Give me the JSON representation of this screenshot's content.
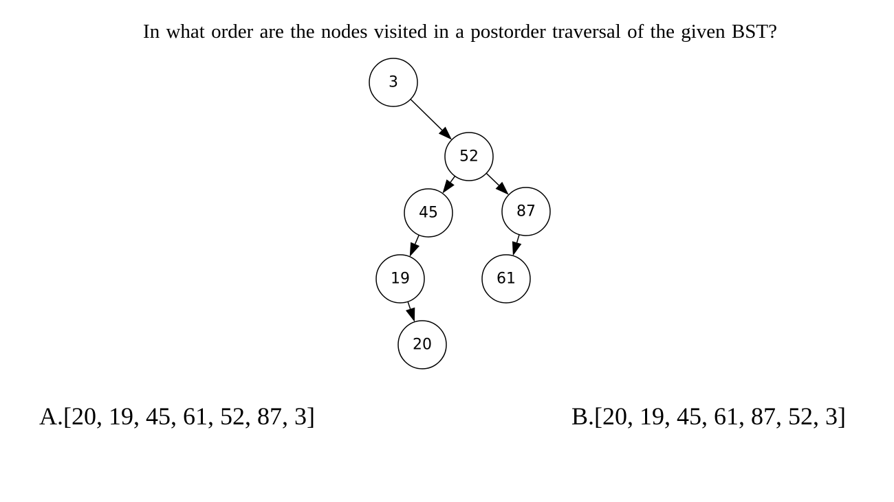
{
  "question": "In what order are the nodes visited in a postorder traversal of the given BST?",
  "tree": {
    "nodes": [
      {
        "id": "3",
        "label": "3"
      },
      {
        "id": "52",
        "label": "52"
      },
      {
        "id": "45",
        "label": "45"
      },
      {
        "id": "87",
        "label": "87"
      },
      {
        "id": "19",
        "label": "19"
      },
      {
        "id": "61",
        "label": "61"
      },
      {
        "id": "20",
        "label": "20"
      }
    ],
    "edges": [
      {
        "from": "3",
        "to": "52"
      },
      {
        "from": "52",
        "to": "45"
      },
      {
        "from": "52",
        "to": "87"
      },
      {
        "from": "45",
        "to": "19"
      },
      {
        "from": "87",
        "to": "61"
      },
      {
        "from": "19",
        "to": "20"
      }
    ]
  },
  "options": {
    "a": "A.[20, 19, 45, 61, 52, 87, 3]",
    "b": "B.[20, 19, 45, 61, 87, 52, 3]"
  }
}
